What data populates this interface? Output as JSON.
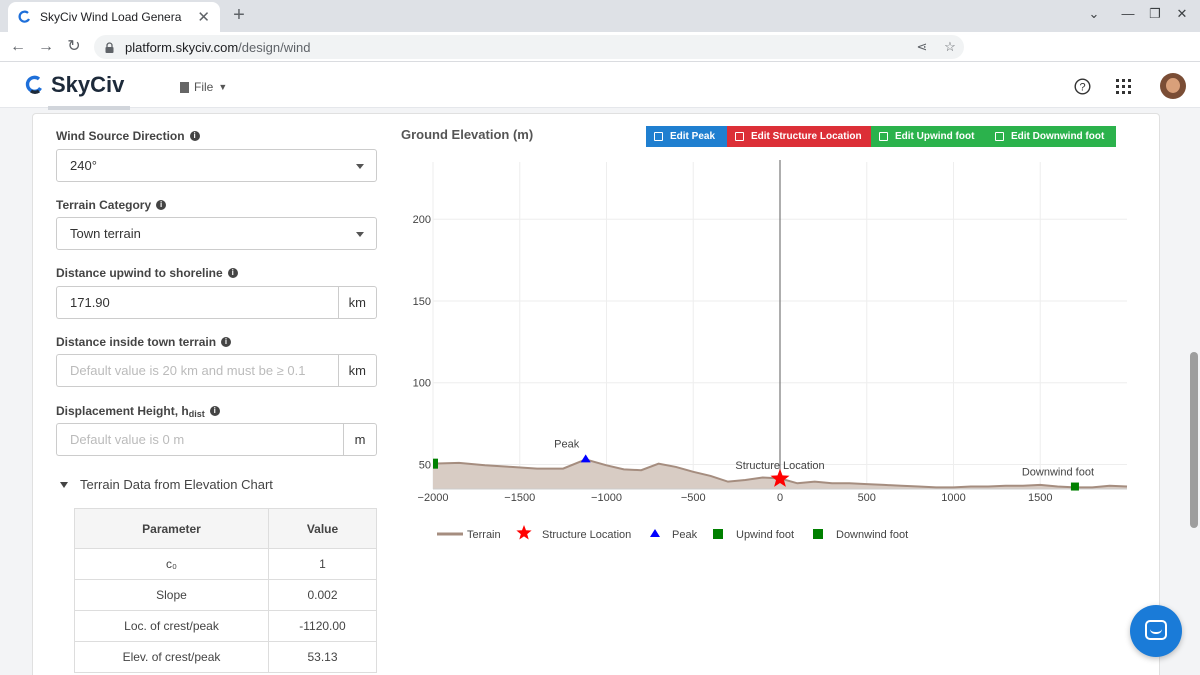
{
  "browser": {
    "tab_title": "SkyCiv Wind Load Genera",
    "url_host": "platform.skyciv.com",
    "url_path": "/design/wind"
  },
  "app": {
    "brand": "SkyCiv",
    "file_menu": "File"
  },
  "form": {
    "wind_dir_label": "Wind Source Direction",
    "wind_dir_value": "240°",
    "terrain_cat_label": "Terrain Category",
    "terrain_cat_value": "Town terrain",
    "dist_shore_label": "Distance upwind to shoreline",
    "dist_shore_value": "171.90",
    "dist_shore_unit": "km",
    "dist_town_label": "Distance inside town terrain",
    "dist_town_placeholder": "Default value is 20 km and must be ≥ 0.1",
    "dist_town_unit": "km",
    "disp_height_label": "Displacement Height, h",
    "disp_height_sub": "dist",
    "disp_height_placeholder": "Default value is 0 m",
    "disp_height_unit": "m"
  },
  "terrain_data": {
    "toggle_label": "Terrain Data from Elevation Chart",
    "header_param": "Parameter",
    "header_value": "Value",
    "rows": [
      {
        "param": "c₀",
        "value": "1"
      },
      {
        "param": "Slope",
        "value": "0.002"
      },
      {
        "param": "Loc. of crest/peak",
        "value": "-1120.00"
      },
      {
        "param": "Elev. of crest/peak",
        "value": "53.13"
      }
    ]
  },
  "chart_toolbar": {
    "title": "Ground Elevation (m)",
    "edit_peak": "Edit Peak",
    "edit_structure": "Edit Structure Location",
    "edit_upwind": "Edit Upwind foot",
    "edit_downwind": "Edit Downwind foot",
    "colors": {
      "peak": "#1f7fd0",
      "structure": "#dc2f37",
      "upwind": "#2bb24c",
      "downwind": "#2bb24c"
    }
  },
  "chart_data": {
    "type": "area",
    "title": "Ground Elevation (m)",
    "xlim": [
      -2000,
      2000
    ],
    "ylim": [
      35,
      235
    ],
    "x_ticks": [
      -2000,
      -1500,
      -1000,
      -500,
      0,
      500,
      1000,
      1500
    ],
    "x_tick_labels": [
      "−2000",
      "−1500",
      "−1000",
      "−500",
      "0",
      "500",
      "1000",
      "1500"
    ],
    "y_ticks": [
      50,
      100,
      150,
      200
    ],
    "y_tick_labels": [
      "50",
      "100",
      "150",
      "200"
    ],
    "grid": true,
    "terrain": {
      "name": "Terrain",
      "color": "#a58d7f",
      "x": [
        -2000,
        -1850,
        -1700,
        -1550,
        -1400,
        -1250,
        -1120,
        -1000,
        -900,
        -800,
        -700,
        -600,
        -500,
        -400,
        -300,
        -200,
        -100,
        0,
        100,
        200,
        300,
        400,
        500,
        600,
        700,
        800,
        900,
        1000,
        1100,
        1200,
        1300,
        1400,
        1500,
        1600,
        1700,
        1800,
        1900,
        2000
      ],
      "y": [
        50.5,
        51,
        49.5,
        48.5,
        47.5,
        47.5,
        53.1,
        49.5,
        47,
        46.5,
        50.5,
        48.5,
        45.5,
        43,
        39.5,
        40.5,
        42,
        41.5,
        38.5,
        39.5,
        38.5,
        38.5,
        38,
        37.5,
        37,
        36.5,
        36,
        36,
        36.5,
        36.5,
        37,
        37,
        37.5,
        36.5,
        36,
        36,
        37,
        36.5
      ]
    },
    "structure": {
      "name": "Structure Location",
      "x": 0,
      "y": 40,
      "label": "Structure Location",
      "color": "#ff0000"
    },
    "peak": {
      "name": "Peak",
      "x": -1120,
      "y": 53.13,
      "label": "Peak",
      "color": "#0000ff"
    },
    "upwind_foot": {
      "name": "Upwind foot",
      "x": -2000,
      "y": 50.5,
      "color": "#008000"
    },
    "downwind_foot": {
      "name": "Downwind foot",
      "x": 1700,
      "y": 36.5,
      "label": "Downwind foot",
      "color": "#008000"
    },
    "legend": [
      "Terrain",
      "Structure Location",
      "Peak",
      "Upwind foot",
      "Downwind foot"
    ],
    "legend_position": "bottom-left"
  }
}
